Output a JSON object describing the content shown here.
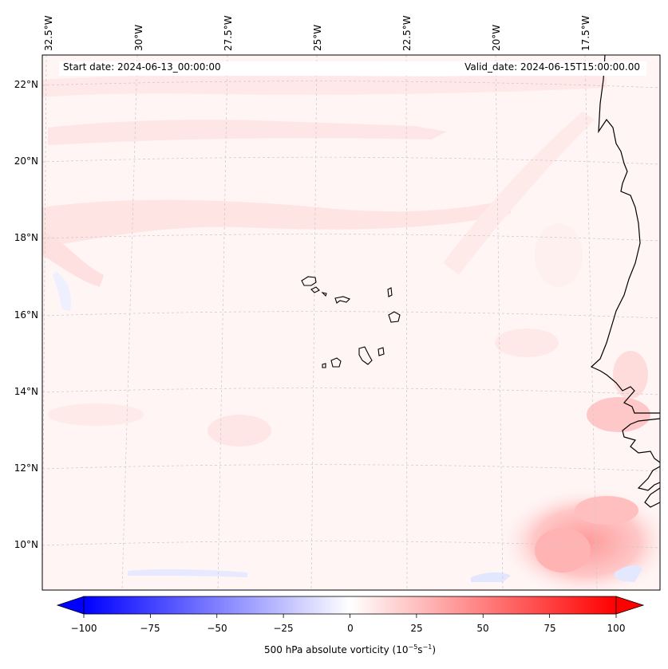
{
  "map": {
    "start_date_text": "Start date: 2024-06-13_00:00:00",
    "valid_date_text": "Valid_date: 2024-06-15T15:00:00.00",
    "longitude_labels": [
      "32.5°W",
      "30°W",
      "27.5°W",
      "25°W",
      "22.5°W",
      "20°W",
      "17.5°W"
    ],
    "latitude_labels": [
      "22°N",
      "20°N",
      "18°N",
      "16°N",
      "14°N",
      "12°N",
      "10°N"
    ],
    "extent": {
      "lon_min": -32.6,
      "lon_max": -15.4,
      "lat_min": 8.9,
      "lat_max": 22.7
    },
    "colors": {
      "background_field": "#fff5f5",
      "coastline": "#000000",
      "gridline": "#c8c8c8"
    }
  },
  "colorbar": {
    "label": "500 hPa absolute vorticity (10",
    "label_exp1": "−5",
    "label_mid": "s",
    "label_exp2": "−1",
    "label_end": ")",
    "ticks": [
      "−100",
      "−75",
      "−50",
      "−25",
      "0",
      "25",
      "50",
      "75",
      "100"
    ],
    "range": [
      -100,
      100
    ],
    "cmap": "bwr",
    "extend": "both"
  }
}
